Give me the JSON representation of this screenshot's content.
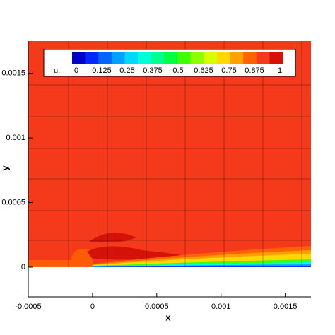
{
  "chart_data": {
    "type": "contour",
    "x_label": "x",
    "y_label": "y",
    "xlim": [
      -0.0005,
      0.0017
    ],
    "ylim": [
      -0.00023,
      0.00175
    ],
    "xticks": [
      -0.0005,
      0,
      0.0005,
      0.001,
      0.0015
    ],
    "yticks": [
      0,
      0.0005,
      0.001,
      0.0015
    ],
    "colorbar": {
      "label": "u:",
      "clim": [
        0,
        1
      ],
      "ticks": [
        0,
        0.125,
        0.25,
        0.375,
        0.5,
        0.625,
        0.75,
        0.875,
        1
      ],
      "colors": [
        "#0000c8",
        "#0028ff",
        "#0064ff",
        "#00a0ff",
        "#00d8ff",
        "#00ffd8",
        "#00ff90",
        "#00ff40",
        "#40ff00",
        "#90ff00",
        "#d8ff00",
        "#ffd800",
        "#ffa000",
        "#ff6400",
        "#f53a1c",
        "#d4120a"
      ]
    }
  }
}
